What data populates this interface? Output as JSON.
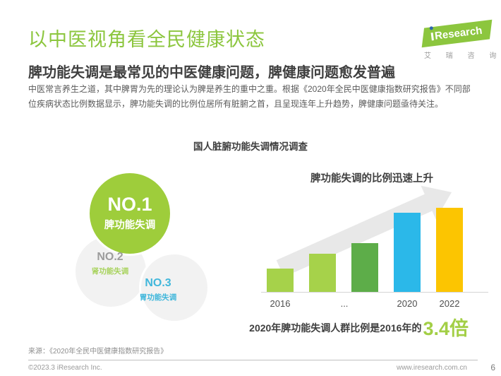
{
  "header": {
    "title": "以中医视角看全民健康状态",
    "subtitle": "脾功能失调是最常见的中医健康问题，脾健康问题愈发普遍",
    "body": "中医常言养生之道，其中脾胃为先的理论认为脾是养生的重中之重。根据《2020年全民中医健康指数研究报告》不同部位疾病状态比例数据显示，脾功能失调的比例位居所有脏腑之首，且呈现连年上升趋势，脾健康问题亟待关注。",
    "logo": {
      "brand": "Research",
      "subtext": "艾 瑞 咨 询"
    }
  },
  "section": {
    "title": "国人脏腑功能失调情况调查"
  },
  "ranking": [
    {
      "rank": "NO.1",
      "label": "脾功能失调",
      "color": "#9ecd3b"
    },
    {
      "rank": "NO.2",
      "label": "肾功能失调",
      "rank_color": "#9c9c9c",
      "label_color": "#a9d35f"
    },
    {
      "rank": "NO.3",
      "label": "胃功能失调",
      "rank_color": "#41b7db",
      "label_color": "#41b7db"
    }
  ],
  "chart_data": {
    "type": "bar",
    "title": "脾功能失调的比例迅速上升",
    "bars": [
      {
        "x": "2016",
        "value_relative_to_2016": 1.0,
        "color": "#a6d24a"
      },
      {
        "x": "",
        "value_relative_to_2016": 1.65,
        "color": "#a6d24a"
      },
      {
        "x": "...",
        "value_relative_to_2016": 2.1,
        "color": "#5dad49"
      },
      {
        "x": "2020",
        "value_relative_to_2016": 3.4,
        "color": "#2bb8e9"
      },
      {
        "x": "2022",
        "value_relative_to_2016": 3.6,
        "color": "#fcc501"
      }
    ],
    "x_axis_labels": [
      "2016",
      "...",
      "2020",
      "2022"
    ],
    "y_axis": "hidden",
    "grid": false,
    "trend_decoration": "upward-gray-arrow",
    "annotation": {
      "text": "2020年脾功能失调人群比例是2016年的",
      "highlight": "3.4倍",
      "highlight_color": "#a3cf46"
    }
  },
  "footer": {
    "source": "来源：《2020年全民中医健康指数研究报告》",
    "copyright": "©2023.3 iResearch Inc.",
    "website": "www.iresearch.com.cn",
    "page_number": "6"
  },
  "colors": {
    "title_green": "#8cc63e",
    "circle_green": "#9ecd3b",
    "heading_dark": "#3f3f3f",
    "body_gray": "#5a5a5a",
    "arrow_gray": "#e8e8e8"
  }
}
